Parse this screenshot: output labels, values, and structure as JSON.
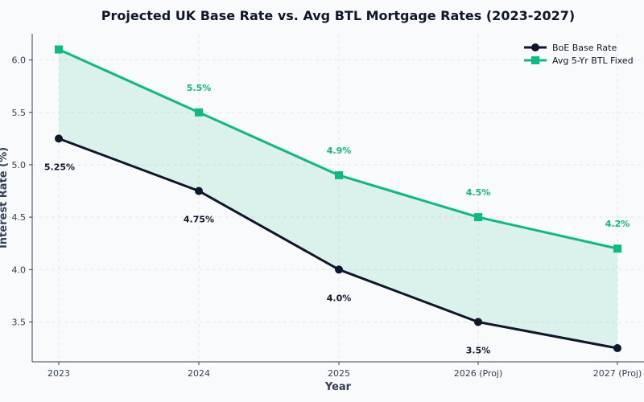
{
  "chart_data": {
    "type": "line",
    "title": "Projected UK Base Rate vs. Avg BTL Mortgage Rates (2023-2027)",
    "xlabel": "Year",
    "ylabel": "Interest Rate (%)",
    "categories": [
      "2023",
      "2024",
      "2025",
      "2026 (Proj)",
      "2027 (Proj)"
    ],
    "ylim": [
      3.12,
      6.25
    ],
    "yticks": [
      "3.5",
      "4.0",
      "4.5",
      "5.0",
      "5.5",
      "6.0"
    ],
    "grid": true,
    "legend_position": "top-right",
    "series": [
      {
        "name": "BoE Base Rate",
        "values": [
          5.25,
          4.75,
          4.0,
          3.5,
          3.25
        ],
        "labels": [
          "5.25%",
          "4.75%",
          "4.0%",
          "3.5%",
          ""
        ],
        "color": "#0f172a",
        "marker": "circle"
      },
      {
        "name": "Avg 5-Yr BTL Fixed",
        "values": [
          6.1,
          5.5,
          4.9,
          4.5,
          4.2
        ],
        "labels": [
          "",
          "5.5%",
          "4.9%",
          "4.5%",
          "4.2%"
        ],
        "color": "#10b981",
        "marker": "square"
      }
    ],
    "fill_between_color": "#10b981"
  }
}
